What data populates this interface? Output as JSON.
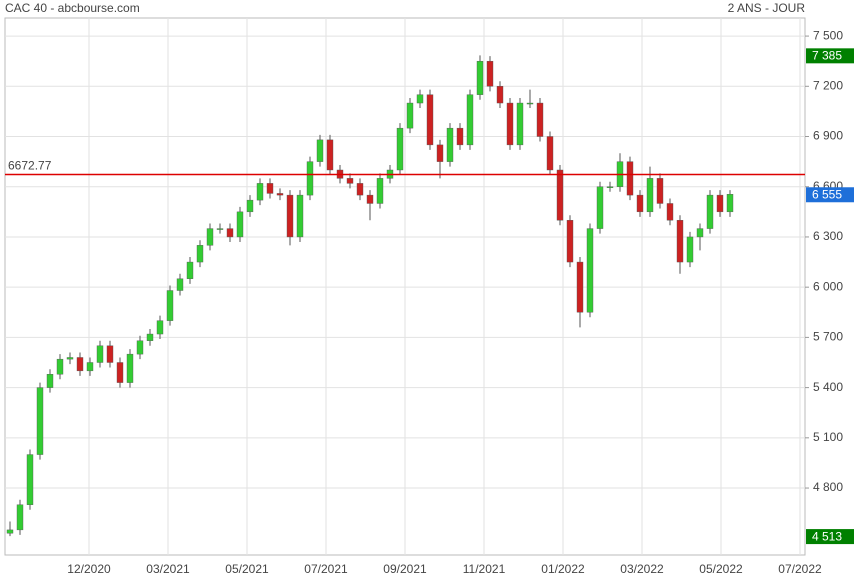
{
  "chart_data": {
    "type": "candlestick",
    "title": "CAC 40 - abcbourse.com",
    "subtitle": "2 ANS - JOUR",
    "up_color": "#33cc33",
    "down_color": "#cc2222",
    "ylim": [
      4400,
      7608
    ],
    "yticks": [
      {
        "value": 4800,
        "label": "4 800"
      },
      {
        "value": 5100,
        "label": "5 100"
      },
      {
        "value": 5400,
        "label": "5 400"
      },
      {
        "value": 5700,
        "label": "5 700"
      },
      {
        "value": 6000,
        "label": "6 000"
      },
      {
        "value": 6300,
        "label": "6 300"
      },
      {
        "value": 6600,
        "label": "6 600"
      },
      {
        "value": 6900,
        "label": "6 900"
      },
      {
        "value": 7200,
        "label": "7 200"
      },
      {
        "value": 7500,
        "label": "7 500"
      }
    ],
    "xticks": [
      "12/2020",
      "03/2021",
      "05/2021",
      "07/2021",
      "09/2021",
      "11/2021",
      "01/2022",
      "03/2022",
      "05/2022",
      "07/2022"
    ],
    "grid": true,
    "reference_line": {
      "value": 6672.77,
      "label": "6672.77",
      "color": "#dd0000"
    },
    "badges": [
      {
        "value": 7385,
        "label": "7 385",
        "color": "#008000"
      },
      {
        "value": 6555,
        "label": "6 555",
        "color": "#1e6fd9"
      },
      {
        "value": 4513,
        "label": "4 513",
        "color": "#008000"
      }
    ],
    "open": [
      4530,
      4550,
      4700,
      5000,
      5400,
      5480,
      5570,
      5580,
      5500,
      5550,
      5650,
      5550,
      5430,
      5600,
      5680,
      5720,
      5800,
      5980,
      6050,
      6150,
      6250,
      6350,
      6350,
      6300,
      6450,
      6520,
      6620,
      6560,
      6550,
      6300,
      6550,
      6750,
      6880,
      6700,
      6650,
      6620,
      6550,
      6500,
      6650,
      6700,
      6950,
      7100,
      7150,
      6850,
      6750,
      6950,
      6850,
      7150,
      7350,
      7200,
      7100,
      6850,
      7100,
      7100,
      6900,
      6700,
      6400,
      6150,
      5850,
      6350,
      6600,
      6600,
      6750,
      6550,
      6450,
      6650,
      6500,
      6400,
      6150,
      6300,
      6350,
      6550,
      6450
    ],
    "high": [
      4600,
      4730,
      5030,
      5430,
      5510,
      5600,
      5610,
      5610,
      5580,
      5680,
      5680,
      5580,
      5630,
      5710,
      5750,
      5830,
      6010,
      6080,
      6180,
      6280,
      6380,
      6380,
      6380,
      6480,
      6550,
      6650,
      6650,
      6590,
      6580,
      6580,
      6780,
      6910,
      6910,
      6730,
      6680,
      6650,
      6580,
      6680,
      6730,
      6980,
      7130,
      7180,
      7180,
      6880,
      6980,
      6980,
      7180,
      7385,
      7380,
      7230,
      7130,
      7130,
      7180,
      7130,
      6930,
      6730,
      6430,
      6180,
      6380,
      6630,
      6630,
      6800,
      6780,
      6580,
      6720,
      6680,
      6530,
      6430,
      6330,
      6380,
      6580,
      6580,
      6580
    ],
    "low": [
      4513,
      4520,
      4670,
      4970,
      5370,
      5450,
      5540,
      5470,
      5470,
      5520,
      5520,
      5400,
      5400,
      5570,
      5650,
      5690,
      5770,
      5950,
      6020,
      6120,
      6220,
      6320,
      6270,
      6270,
      6420,
      6490,
      6530,
      6520,
      6250,
      6270,
      6520,
      6720,
      6670,
      6620,
      6590,
      6520,
      6400,
      6470,
      6620,
      6670,
      6920,
      7070,
      6820,
      6650,
      6720,
      6820,
      6820,
      7120,
      7170,
      7070,
      6820,
      6820,
      7070,
      6870,
      6670,
      6370,
      6120,
      5760,
      5820,
      6320,
      6570,
      6570,
      6520,
      6420,
      6420,
      6470,
      6370,
      6080,
      6120,
      6220,
      6320,
      6420,
      6420
    ],
    "close": [
      4550,
      4700,
      5000,
      5400,
      5480,
      5570,
      5580,
      5500,
      5550,
      5650,
      5550,
      5430,
      5600,
      5680,
      5720,
      5800,
      5980,
      6050,
      6150,
      6250,
      6350,
      6350,
      6300,
      6450,
      6520,
      6620,
      6560,
      6550,
      6300,
      6550,
      6750,
      6880,
      6700,
      6650,
      6620,
      6550,
      6500,
      6650,
      6700,
      6950,
      7100,
      7150,
      6850,
      6750,
      6950,
      6850,
      7150,
      7350,
      7200,
      7100,
      6850,
      7100,
      7100,
      6900,
      6700,
      6400,
      6150,
      5850,
      6350,
      6600,
      6600,
      6750,
      6550,
      6450,
      6650,
      6500,
      6400,
      6150,
      6300,
      6350,
      6550,
      6450,
      6555
    ]
  }
}
